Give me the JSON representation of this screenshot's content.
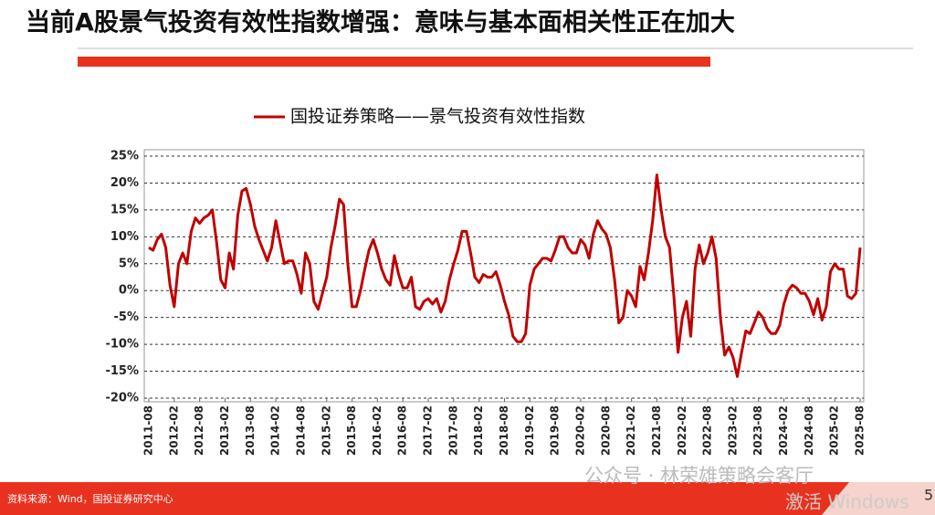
{
  "header": {
    "title": "当前A股景气投资有效性指数增强：意味与基本面相关性正在加大"
  },
  "chart_data": {
    "type": "line",
    "categories": [
      "2011-08",
      null,
      null,
      null,
      null,
      null,
      "2012-02",
      null,
      null,
      null,
      null,
      null,
      "2012-08",
      null,
      null,
      null,
      null,
      null,
      "2013-02",
      null,
      null,
      null,
      null,
      null,
      "2013-08",
      null,
      null,
      null,
      null,
      null,
      "2014-02",
      null,
      null,
      null,
      null,
      null,
      "2014-08",
      null,
      null,
      null,
      null,
      null,
      "2015-02",
      null,
      null,
      null,
      null,
      null,
      "2015-08",
      null,
      null,
      null,
      null,
      null,
      "2016-02",
      null,
      null,
      null,
      null,
      null,
      "2016-08",
      null,
      null,
      null,
      null,
      null,
      "2017-02",
      null,
      null,
      null,
      null,
      null,
      "2017-08",
      null,
      null,
      null,
      null,
      null,
      "2018-02",
      null,
      null,
      null,
      null,
      null,
      "2018-08",
      null,
      null,
      null,
      null,
      null,
      "2019-02",
      null,
      null,
      null,
      null,
      null,
      "2019-08",
      null,
      null,
      null,
      null,
      null,
      "2020-02",
      null,
      null,
      null,
      null,
      null,
      "2020-08",
      null,
      null,
      null,
      null,
      null,
      "2021-02",
      null,
      null,
      null,
      null,
      null,
      "2021-08",
      null,
      null,
      null,
      null,
      null,
      "2022-02",
      null,
      null,
      null,
      null,
      null,
      "2022-08",
      null,
      null,
      null,
      null,
      null,
      "2023-02",
      null,
      null,
      null,
      null,
      null,
      "2023-08",
      null,
      null,
      null,
      null,
      null,
      "2024-02",
      null,
      null,
      null,
      null,
      null,
      "2024-08",
      null,
      null,
      null,
      null,
      null,
      "2025-02",
      null,
      null,
      null,
      null,
      null,
      "2025-08"
    ],
    "series": [
      {
        "name": "国投证券策略——景气投资有效性指数",
        "color": "#c00000",
        "values": [
          8,
          7.5,
          9.5,
          10.5,
          8,
          1,
          -3,
          5,
          7,
          5,
          11,
          13.5,
          12.5,
          13.5,
          14,
          15,
          9,
          2,
          0.5,
          7,
          4,
          14,
          18.5,
          19,
          16,
          12,
          9.5,
          7.5,
          5.5,
          8,
          13,
          9,
          5,
          5.5,
          5.5,
          3,
          -0.5,
          7,
          5,
          -2,
          -3.5,
          -0.5,
          2.5,
          8,
          12,
          17,
          16,
          5,
          -3,
          -3,
          0,
          4,
          7.5,
          9.5,
          7,
          4,
          2,
          1,
          6.5,
          3,
          0.5,
          0.5,
          2.5,
          -3,
          -3.5,
          -2,
          -1.5,
          -2.5,
          -1.5,
          -4,
          -2,
          2,
          5,
          7.5,
          11,
          11,
          7,
          2.5,
          1.5,
          3,
          2.5,
          2.5,
          3.5,
          1,
          -2,
          -4.5,
          -8.5,
          -9.5,
          -9.5,
          -8,
          1,
          4,
          5,
          6,
          6,
          5.5,
          7.5,
          10,
          10,
          8,
          7,
          7,
          9.5,
          8.5,
          6,
          10.5,
          13,
          11.5,
          10.5,
          8,
          2,
          -6,
          -5,
          0,
          -1,
          -3,
          4.5,
          2,
          7,
          13,
          21.5,
          15,
          10,
          8,
          -1,
          -11.5,
          -5,
          -2,
          -8.5,
          4,
          8.5,
          5,
          7,
          10,
          6,
          -5,
          -12,
          -10.5,
          -12.5,
          -16,
          -11.5,
          -7.5,
          -8,
          -6,
          -4,
          -5,
          -7,
          -8,
          -8,
          -6.5,
          -2.5,
          0,
          1,
          0.5,
          -0.5,
          -0.5,
          -2,
          -4.5,
          -1.5,
          -5.5,
          -3,
          3.5,
          5,
          4,
          4,
          -1,
          -1.5,
          -0.5,
          8
        ]
      }
    ],
    "ylim": [
      -20,
      25
    ],
    "yticks": [
      {
        "value": -20,
        "label": "-20%"
      },
      {
        "value": -15,
        "label": "-15%"
      },
      {
        "value": -10,
        "label": "-10%"
      },
      {
        "value": -5,
        "label": "-5%"
      },
      {
        "value": 0,
        "label": "0%"
      },
      {
        "value": 5,
        "label": "5%"
      },
      {
        "value": 10,
        "label": "10%"
      },
      {
        "value": 15,
        "label": "15%"
      },
      {
        "value": 20,
        "label": "20%"
      },
      {
        "value": 25,
        "label": "25%"
      }
    ],
    "grid": true,
    "legend": "top"
  },
  "footer": {
    "source": "资料来源：Wind，国投证券研究中心",
    "watermark": "公众号 · 林荣雄策略会客厅",
    "page_number": "5"
  },
  "overlay": {
    "windows_activation": "激活 Windows"
  }
}
